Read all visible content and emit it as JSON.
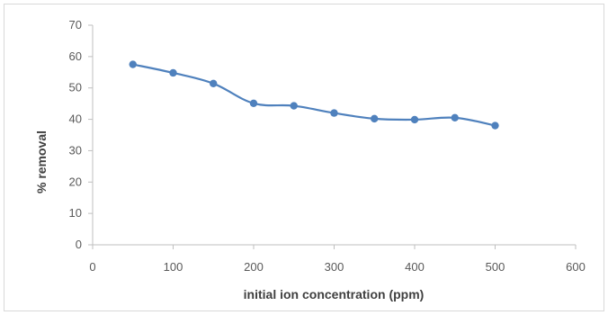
{
  "chart_data": {
    "type": "line",
    "title": "",
    "xlabel": "initial ion concentration (ppm)",
    "ylabel": "% removal",
    "xlim": [
      0,
      600
    ],
    "ylim": [
      0,
      70
    ],
    "x_ticks": [
      "0",
      "100",
      "200",
      "300",
      "400",
      "500",
      "600"
    ],
    "y_ticks": [
      "0",
      "10",
      "20",
      "30",
      "40",
      "50",
      "60",
      "70"
    ],
    "grid": false,
    "legend": "none",
    "series": [
      {
        "color": "#4f81bd",
        "marker": "circle",
        "smooth": true,
        "x": [
          50,
          100,
          150,
          200,
          250,
          300,
          350,
          400,
          450,
          500
        ],
        "y": [
          57.5,
          54.8,
          51.4,
          45.1,
          44.3,
          42.0,
          40.2,
          39.9,
          40.5,
          38.0
        ]
      }
    ]
  }
}
